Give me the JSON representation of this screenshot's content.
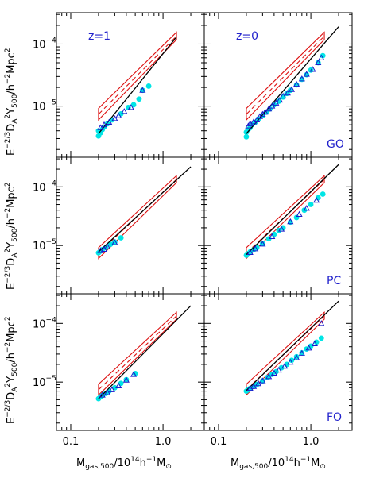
{
  "colors": {
    "scatter_fill": "#00e5e5",
    "triangle": "#1a1acc",
    "fit_line": "#000000",
    "box": "#dd1111",
    "label": "#2222cc",
    "frame": "#000000"
  },
  "labels": {
    "x_axis": "M",
    "x_axis_sub": "gas,500",
    "x_axis_unit": "/10",
    "x_axis_exp": "14",
    "x_axis_h": "h",
    "x_axis_hexp": "−1",
    "x_axis_msun": "M",
    "x_axis_sun": "⊙",
    "y_axis_e": "E",
    "y_axis_eexp": "−2/3",
    "y_axis_d": "D",
    "y_axis_dsub": "A",
    "y_axis_dexp": "2",
    "y_axis_y": "Y",
    "y_axis_ysub": "500",
    "y_axis_unit": "/h",
    "y_axis_hexp": "−2",
    "y_axis_mpc": "Mpc",
    "y_axis_mpcexp": "2"
  },
  "ticks": {
    "x": [
      {
        "value": 0.1,
        "label": "0.1"
      },
      {
        "value": 1.0,
        "label": "1.0"
      }
    ],
    "y": [
      {
        "exp": -5,
        "label": "10",
        "sup": "−5"
      },
      {
        "exp": -4,
        "label": "10",
        "sup": "−4"
      }
    ]
  },
  "chart_data": [
    {
      "type": "scatter",
      "row": 0,
      "col": 0,
      "redshift_label": "z=1",
      "model_label": "",
      "xscale": "log",
      "yscale": "log",
      "xlim": [
        0.07,
        2.8
      ],
      "ylim": [
        1.5e-06,
        0.00032
      ],
      "fit_line": {
        "x": [
          0.2,
          1.4
        ],
        "y": [
          3.6e-06,
          0.00013
        ]
      },
      "cyan_points": {
        "x": [
          0.2,
          0.2,
          0.21,
          0.22,
          0.23,
          0.25,
          0.28,
          0.35,
          0.42,
          0.48,
          0.55,
          0.6,
          0.7
        ],
        "y": [
          3.3e-06,
          4e-06,
          3.7e-06,
          4.2e-06,
          4.6e-06,
          5.2e-06,
          6e-06,
          7.5e-06,
          9.5e-06,
          1.05e-05,
          1.3e-05,
          1.8e-05,
          2.1e-05
        ]
      },
      "triangles": {
        "x": [
          0.21,
          0.23,
          0.26,
          0.3,
          0.33,
          0.38,
          0.45,
          0.6
        ],
        "y": [
          4.5e-06,
          5e-06,
          5.5e-06,
          6.3e-06,
          7e-06,
          8.2e-06,
          9.5e-06,
          1.8e-05
        ]
      }
    },
    {
      "type": "scatter",
      "row": 0,
      "col": 1,
      "redshift_label": "z=0",
      "model_label": "GO",
      "xscale": "log",
      "yscale": "log",
      "xlim": [
        0.07,
        2.8
      ],
      "ylim": [
        1.5e-06,
        0.00032
      ],
      "fit_line": {
        "x": [
          0.2,
          2.0
        ],
        "y": [
          3.6e-06,
          0.00019
        ]
      },
      "cyan_points": {
        "x": [
          0.2,
          0.2,
          0.21,
          0.22,
          0.23,
          0.25,
          0.27,
          0.3,
          0.33,
          0.36,
          0.4,
          0.45,
          0.5,
          0.55,
          0.6,
          0.7,
          0.8,
          0.9,
          1.0,
          1.2,
          1.35
        ],
        "y": [
          3.2e-06,
          3.8e-06,
          4.2e-06,
          4.5e-06,
          5e-06,
          5.5e-06,
          6.2e-06,
          7e-06,
          8e-06,
          9e-06,
          1.05e-05,
          1.2e-05,
          1.4e-05,
          1.6e-05,
          1.8e-05,
          2.2e-05,
          2.7e-05,
          3.2e-05,
          3.8e-05,
          5e-05,
          6.5e-05
        ]
      },
      "triangles": {
        "x": [
          0.21,
          0.22,
          0.24,
          0.26,
          0.28,
          0.3,
          0.32,
          0.35,
          0.38,
          0.42,
          0.46,
          0.5,
          0.56,
          0.62,
          0.7,
          0.8,
          0.9,
          1.05,
          1.2,
          1.3
        ],
        "y": [
          4.8e-06,
          5.2e-06,
          5.6e-06,
          6e-06,
          6.8e-06,
          7.4e-06,
          8e-06,
          9e-06,
          1e-05,
          1.12e-05,
          1.25e-05,
          1.45e-05,
          1.62e-05,
          1.85e-05,
          2.25e-05,
          2.75e-05,
          3.25e-05,
          3.9e-05,
          5e-05,
          6e-05
        ]
      }
    },
    {
      "type": "scatter",
      "row": 1,
      "col": 0,
      "redshift_label": "",
      "model_label": "",
      "xscale": "log",
      "yscale": "log",
      "xlim": [
        0.07,
        2.8
      ],
      "ylim": [
        1.5e-06,
        0.00032
      ],
      "fit_line": {
        "x": [
          0.2,
          2.0
        ],
        "y": [
          7.8e-06,
          0.00022
        ]
      },
      "cyan_points": {
        "x": [
          0.2,
          0.21,
          0.22,
          0.24,
          0.27,
          0.3,
          0.35
        ],
        "y": [
          7.5e-06,
          8e-06,
          8.5e-06,
          9.2e-06,
          1.05e-05,
          1.15e-05,
          1.35e-05
        ]
      },
      "triangles": {
        "x": [
          0.21,
          0.23,
          0.25,
          0.3
        ],
        "y": [
          8.2e-06,
          8.6e-06,
          9.5e-06,
          1.12e-05
        ]
      }
    },
    {
      "type": "scatter",
      "row": 1,
      "col": 1,
      "redshift_label": "",
      "model_label": "PC",
      "xscale": "log",
      "yscale": "log",
      "xlim": [
        0.07,
        2.8
      ],
      "ylim": [
        1.5e-06,
        0.00032
      ],
      "fit_line": {
        "x": [
          0.2,
          2.0
        ],
        "y": [
          7e-06,
          0.00024
        ]
      },
      "cyan_points": {
        "x": [
          0.2,
          0.21,
          0.22,
          0.24,
          0.26,
          0.3,
          0.35,
          0.4,
          0.45,
          0.5,
          0.6,
          0.7,
          0.85,
          1.0,
          1.2,
          1.35
        ],
        "y": [
          6.8e-06,
          7.3e-06,
          7.8e-06,
          8.5e-06,
          9.2e-06,
          1.08e-05,
          1.3e-05,
          1.55e-05,
          1.8e-05,
          2e-05,
          2.5e-05,
          3e-05,
          4e-05,
          5e-05,
          6.5e-05,
          7.5e-05
        ]
      },
      "triangles": {
        "x": [
          0.22,
          0.25,
          0.3,
          0.38,
          0.48,
          0.6,
          0.75,
          0.9,
          1.15
        ],
        "y": [
          7.6e-06,
          8.8e-06,
          1.06e-05,
          1.42e-05,
          1.9e-05,
          2.55e-05,
          3.4e-05,
          4.3e-05,
          5.9e-05
        ]
      }
    },
    {
      "type": "scatter",
      "row": 2,
      "col": 0,
      "redshift_label": "",
      "model_label": "",
      "xscale": "log",
      "yscale": "log",
      "xlim": [
        0.07,
        2.8
      ],
      "ylim": [
        1.5e-06,
        0.00032
      ],
      "fit_line": {
        "x": [
          0.2,
          2.0
        ],
        "y": [
          5.2e-06,
          0.0002
        ]
      },
      "cyan_points": {
        "x": [
          0.2,
          0.21,
          0.22,
          0.24,
          0.26,
          0.3,
          0.35,
          0.4,
          0.5
        ],
        "y": [
          5.2e-06,
          5.6e-06,
          5.9e-06,
          6.4e-06,
          7e-06,
          8e-06,
          9.5e-06,
          1.1e-05,
          1.4e-05
        ]
      },
      "triangles": {
        "x": [
          0.22,
          0.25,
          0.28,
          0.33,
          0.4,
          0.48
        ],
        "y": [
          6e-06,
          6.6e-06,
          7.4e-06,
          8.6e-06,
          1.08e-05,
          1.35e-05
        ]
      }
    },
    {
      "type": "scatter",
      "row": 2,
      "col": 1,
      "redshift_label": "",
      "model_label": "FO",
      "xscale": "log",
      "yscale": "log",
      "xlim": [
        0.07,
        2.8
      ],
      "ylim": [
        1.5e-06,
        0.00032
      ],
      "fit_line": {
        "x": [
          0.2,
          2.0
        ],
        "y": [
          7.2e-06,
          0.00024
        ]
      },
      "cyan_points": {
        "x": [
          0.2,
          0.21,
          0.22,
          0.24,
          0.26,
          0.3,
          0.34,
          0.38,
          0.42,
          0.48,
          0.55,
          0.62,
          0.7,
          0.8,
          0.9,
          1.0,
          1.15,
          1.3
        ],
        "y": [
          7e-06,
          7.4e-06,
          7.8e-06,
          8.4e-06,
          9.1e-06,
          1.05e-05,
          1.2e-05,
          1.35e-05,
          1.5e-05,
          1.75e-05,
          2e-05,
          2.35e-05,
          2.7e-05,
          3.15e-05,
          3.65e-05,
          4.1e-05,
          4.8e-05,
          5.6e-05
        ]
      },
      "triangles": {
        "x": [
          0.22,
          0.24,
          0.27,
          0.3,
          0.35,
          0.4,
          0.45,
          0.52,
          0.6,
          0.7,
          0.8,
          0.95,
          1.1,
          1.3
        ],
        "y": [
          7.8e-06,
          8.4e-06,
          9.4e-06,
          1.05e-05,
          1.24e-05,
          1.42e-05,
          1.6e-05,
          1.86e-05,
          2.18e-05,
          2.6e-05,
          3.1e-05,
          3.8e-05,
          4.5e-05,
          0.0001
        ]
      }
    }
  ]
}
